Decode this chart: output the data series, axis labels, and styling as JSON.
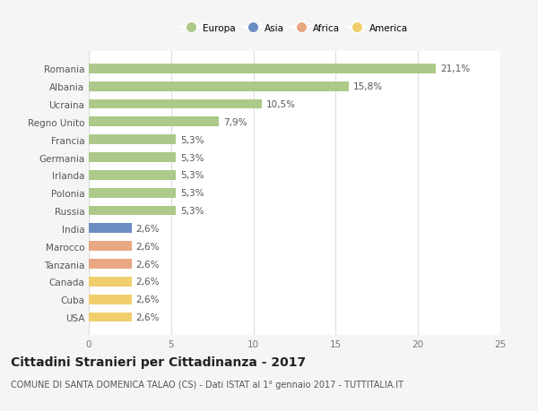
{
  "categories": [
    "Romania",
    "Albania",
    "Ucraina",
    "Regno Unito",
    "Francia",
    "Germania",
    "Irlanda",
    "Polonia",
    "Russia",
    "India",
    "Marocco",
    "Tanzania",
    "Canada",
    "Cuba",
    "USA"
  ],
  "values": [
    21.1,
    15.8,
    10.5,
    7.9,
    5.3,
    5.3,
    5.3,
    5.3,
    5.3,
    2.6,
    2.6,
    2.6,
    2.6,
    2.6,
    2.6
  ],
  "labels": [
    "21,1%",
    "15,8%",
    "10,5%",
    "7,9%",
    "5,3%",
    "5,3%",
    "5,3%",
    "5,3%",
    "5,3%",
    "2,6%",
    "2,6%",
    "2,6%",
    "2,6%",
    "2,6%",
    "2,6%"
  ],
  "continents": [
    "Europa",
    "Europa",
    "Europa",
    "Europa",
    "Europa",
    "Europa",
    "Europa",
    "Europa",
    "Europa",
    "Asia",
    "Africa",
    "Africa",
    "America",
    "America",
    "America"
  ],
  "colors": {
    "Europa": "#adc98a",
    "Asia": "#6b8ec2",
    "Africa": "#e8a882",
    "America": "#f0ce6e"
  },
  "legend_order": [
    "Europa",
    "Asia",
    "Africa",
    "America"
  ],
  "xlim": [
    0,
    25
  ],
  "xticks": [
    0,
    5,
    10,
    15,
    20,
    25
  ],
  "title": "Cittadini Stranieri per Cittadinanza - 2017",
  "subtitle": "COMUNE DI SANTA DOMENICA TALAO (CS) - Dati ISTAT al 1° gennaio 2017 - TUTTITALIA.IT",
  "background_color": "#f5f5f5",
  "plot_bg_color": "#ffffff",
  "grid_color": "#dddddd",
  "bar_height": 0.55,
  "label_fontsize": 7.5,
  "ytick_fontsize": 7.5,
  "xtick_fontsize": 7.5,
  "title_fontsize": 10,
  "subtitle_fontsize": 7,
  "value_label_color": "#555555",
  "ytick_color": "#555555"
}
